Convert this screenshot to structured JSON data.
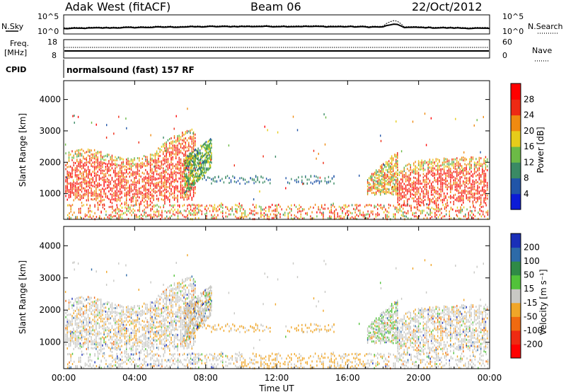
{
  "header": {
    "title": "Adak West (fitACF)",
    "beam": "Beam 06",
    "date": "22/Oct/2012"
  },
  "noise_panel": {
    "left_label": "N.Sky",
    "right_label": "N.Search",
    "left_ticks": [
      "10^5",
      "10^0"
    ],
    "right_ticks": [
      "10^5",
      "10^0"
    ]
  },
  "freq_panel": {
    "left_label_1": "Freq.",
    "left_label_2": "[MHz]",
    "left_ticks": [
      "18",
      "8"
    ],
    "right_label": "Nave",
    "right_ticks": [
      "60",
      "0"
    ]
  },
  "cpid": {
    "label": "CPID",
    "text": "normalsound (fast) 157 RF"
  },
  "chart_data": [
    {
      "type": "heatmap",
      "name": "Power",
      "ylabel": "Slant Range [km]",
      "xlabel": "",
      "ylim": [
        180,
        4600
      ],
      "yticks": [
        1000,
        2000,
        3000,
        4000
      ],
      "xlim": [
        0,
        24
      ],
      "colorbar": {
        "label": "Power [dB]",
        "ticks": [
          "4",
          "8",
          "12",
          "16",
          "20",
          "24",
          "28"
        ]
      },
      "colors": [
        "#0c1bd6",
        "#2155a8",
        "#3a8a64",
        "#6cba46",
        "#e6cc1a",
        "#f08a10",
        "#ee2a14",
        "#ff0000"
      ]
    },
    {
      "type": "heatmap",
      "name": "Velocity",
      "ylabel": "Slant Range [km]",
      "xlabel": "Time UT",
      "ylim": [
        180,
        4600
      ],
      "yticks": [
        1000,
        2000,
        3000,
        4000
      ],
      "xlim": [
        0,
        24
      ],
      "xticklabels": [
        "00:00",
        "04:00",
        "08:00",
        "12:00",
        "16:00",
        "20:00",
        "00:00"
      ],
      "colorbar": {
        "label": "Velocity [m s⁻¹]",
        "ticks": [
          "200",
          "100",
          "50",
          "15",
          "-15",
          "-50",
          "-100",
          "-200"
        ]
      },
      "colors": [
        "#1a2fb8",
        "#2d6aa8",
        "#2f8a46",
        "#52c23a",
        "#c8c8c4",
        "#f0a628",
        "#f06a10",
        "#ee2a12",
        "#ff0000"
      ]
    }
  ]
}
